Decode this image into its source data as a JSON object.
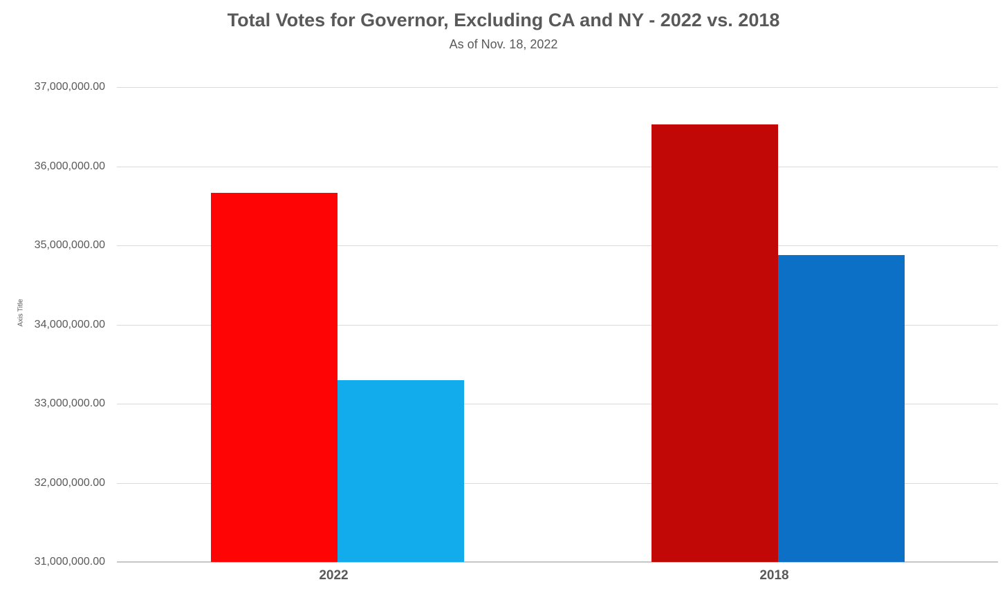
{
  "page": {
    "background_color": "#ffffff",
    "text_color": "#595959"
  },
  "chart_data": {
    "type": "bar",
    "title": "Total Votes for Governor, Excluding CA and NY - 2022 vs. 2018",
    "subtitle": "As of Nov. 18, 2022",
    "y_axis_title": "Axis Title",
    "xlabel": "",
    "categories": [
      "2022",
      "2018"
    ],
    "series": [
      {
        "name": "red-series",
        "values": [
          35660000,
          36530000
        ],
        "colors": [
          "#fe0404",
          "#c20707"
        ]
      },
      {
        "name": "blue-series",
        "values": [
          33300000,
          34880000
        ],
        "colors": [
          "#12abeb",
          "#0b70c6"
        ]
      }
    ],
    "ylim": [
      31000000,
      37000000
    ],
    "ytick_step": 1000000,
    "yticks": [
      {
        "value": 37000000,
        "label": "37,000,000.00"
      },
      {
        "value": 36000000,
        "label": "36,000,000.00"
      },
      {
        "value": 35000000,
        "label": "35,000,000.00"
      },
      {
        "value": 34000000,
        "label": "34,000,000.00"
      },
      {
        "value": 33000000,
        "label": "33,000,000.00"
      },
      {
        "value": 32000000,
        "label": "32,000,000.00"
      },
      {
        "value": 31000000,
        "label": "31,000,000.00"
      }
    ],
    "grid": true,
    "legend_position": "none",
    "colors": {
      "gridline": "#d9d9d9",
      "axis_line": "#c6c6c6",
      "label_text": "#595959"
    }
  }
}
